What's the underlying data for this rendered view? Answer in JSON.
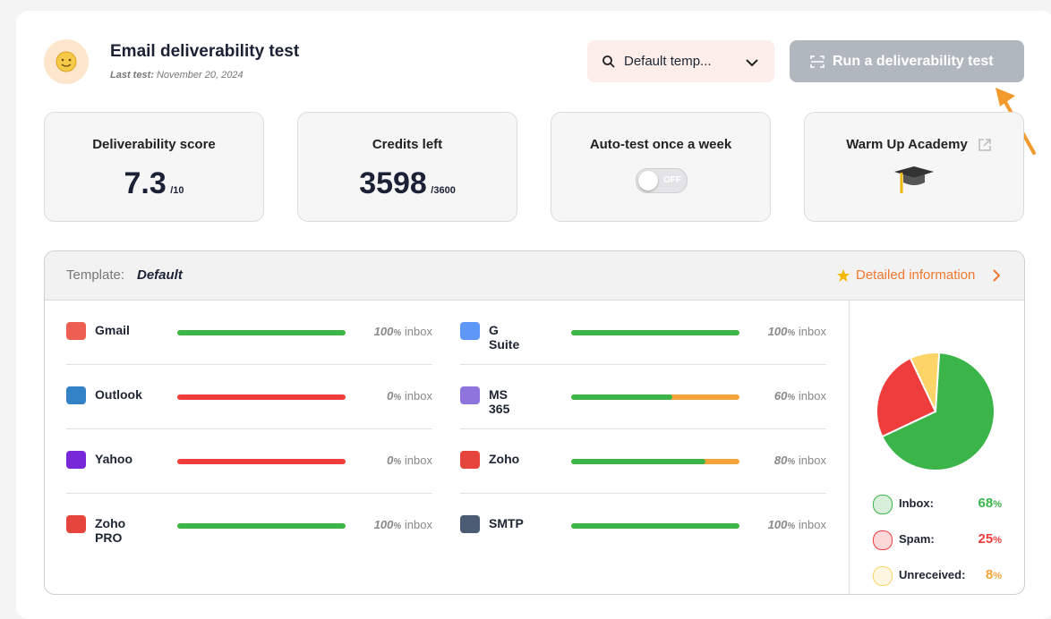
{
  "header": {
    "title": "Email deliverability test",
    "last_test_label": "Last test:",
    "last_test_date": "November 20, 2024",
    "template_select": "Default temp...",
    "run_button": "Run a deliverability test"
  },
  "cards": [
    {
      "title": "Deliverability score",
      "value": 7.3,
      "max": "/10"
    },
    {
      "title": "Credits left",
      "value": 3598,
      "max": "/3600"
    },
    {
      "title": "Auto-test once a week",
      "toggle": "OFF"
    },
    {
      "title": "Warm Up Academy"
    }
  ],
  "results": {
    "template_label": "Template:",
    "template_name": "Default",
    "details_link": "Detailed information",
    "unit": "%",
    "status": "inbox",
    "providers": [
      {
        "name": "Gmail",
        "inbox": 100
      },
      {
        "name": "G Suite",
        "inbox": 100
      },
      {
        "name": "Outlook",
        "inbox": 0
      },
      {
        "name": "MS 365",
        "inbox": 60
      },
      {
        "name": "Yahoo",
        "inbox": 0
      },
      {
        "name": "Zoho",
        "inbox": 80
      },
      {
        "name": "Zoho PRO",
        "inbox": 100
      },
      {
        "name": "SMTP",
        "inbox": 100
      }
    ],
    "summary": [
      {
        "label": "Inbox:",
        "value": 68,
        "color": "#3bb44a"
      },
      {
        "label": "Spam:",
        "value": 25,
        "color": "#ef3d3d"
      },
      {
        "label": "Unreceived:",
        "value": 8,
        "color": "#fcd467"
      }
    ]
  }
}
